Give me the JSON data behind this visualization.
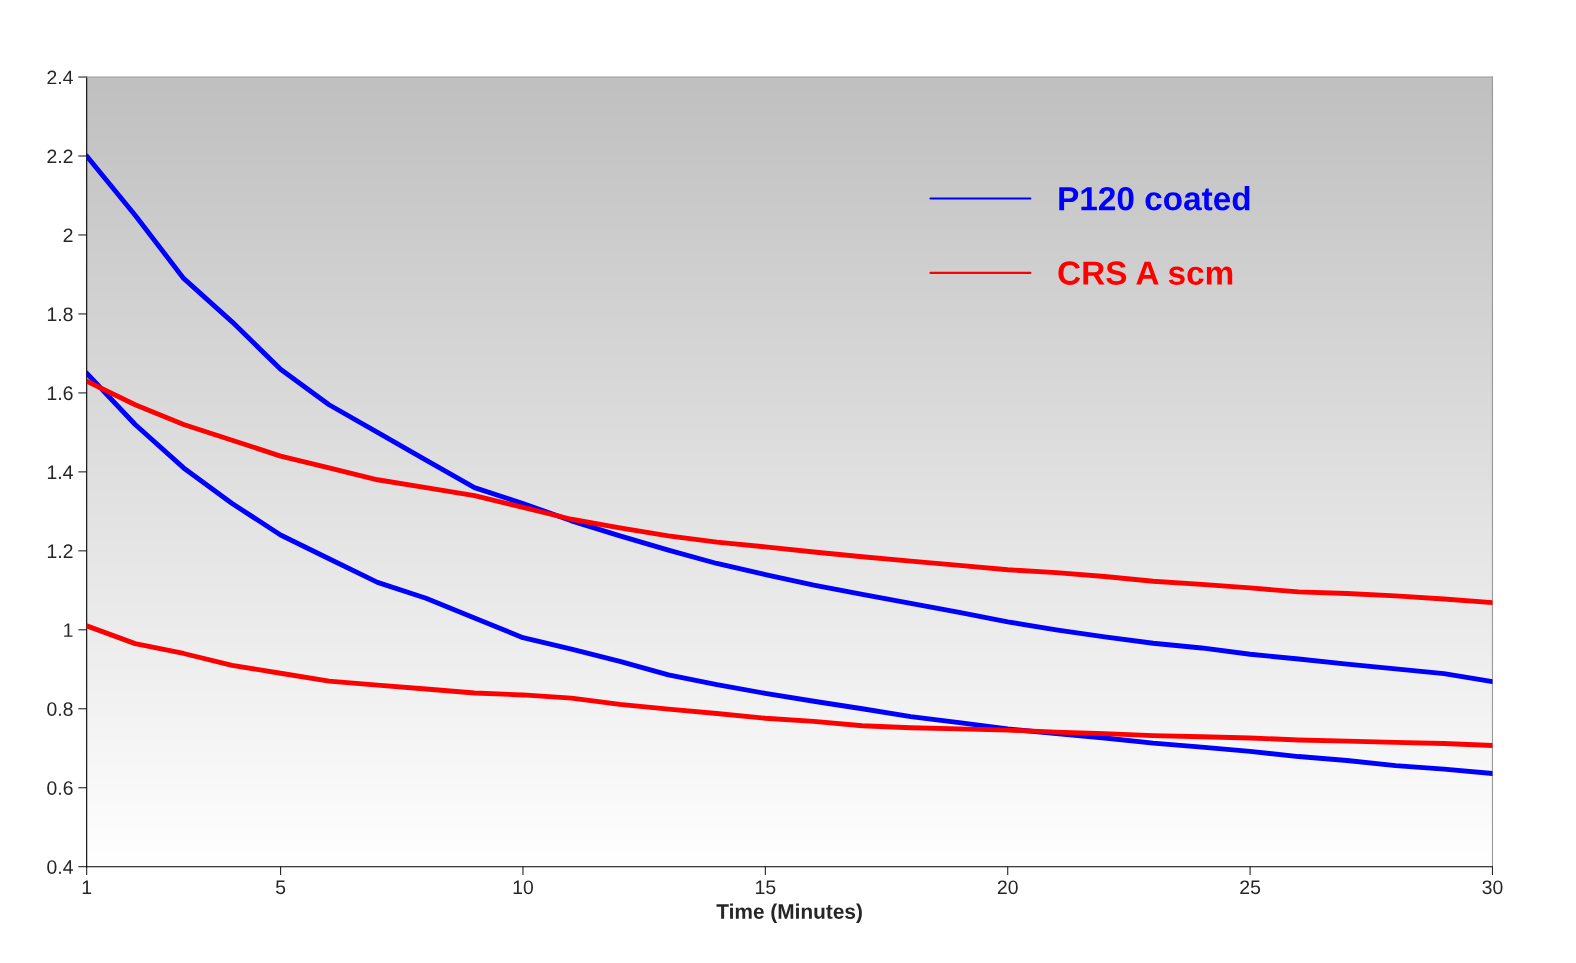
{
  "chart_data": {
    "type": "line",
    "xlabel": "Time (Minutes)",
    "x": [
      1,
      2,
      3,
      4,
      5,
      6,
      7,
      8,
      9,
      10,
      11,
      12,
      13,
      14,
      15,
      16,
      17,
      18,
      19,
      20,
      21,
      22,
      23,
      24,
      25,
      26,
      27,
      28,
      29,
      30
    ],
    "series": [
      {
        "name": "P120 coated",
        "color": "#0000ff",
        "values": [
          2.2,
          2.05,
          1.89,
          1.78,
          1.66,
          1.57,
          1.5,
          1.43,
          1.36,
          1.32,
          1.276,
          1.238,
          1.202,
          1.168,
          1.14,
          1.113,
          1.09,
          1.067,
          1.044,
          1.02,
          1.0,
          0.982,
          0.966,
          0.954,
          0.938,
          0.926,
          0.913,
          0.901,
          0.889,
          0.869
        ]
      },
      {
        "color": "#0000ff",
        "values": [
          1.65,
          1.52,
          1.41,
          1.32,
          1.24,
          1.18,
          1.12,
          1.08,
          1.03,
          0.98,
          0.951,
          0.92,
          0.886,
          0.861,
          0.839,
          0.819,
          0.8,
          0.78,
          0.765,
          0.749,
          0.737,
          0.726,
          0.713,
          0.703,
          0.692,
          0.679,
          0.669,
          0.656,
          0.647,
          0.636
        ]
      },
      {
        "name": "CRS A scm",
        "color": "#ff0000",
        "values": [
          1.63,
          1.57,
          1.52,
          1.48,
          1.44,
          1.41,
          1.38,
          1.36,
          1.34,
          1.31,
          1.28,
          1.258,
          1.238,
          1.222,
          1.21,
          1.197,
          1.185,
          1.174,
          1.163,
          1.152,
          1.145,
          1.135,
          1.123,
          1.115,
          1.106,
          1.096,
          1.092,
          1.086,
          1.078,
          1.069
        ]
      },
      {
        "color": "#ff0000",
        "values": [
          1.01,
          0.965,
          0.94,
          0.91,
          0.89,
          0.87,
          0.86,
          0.85,
          0.84,
          0.835,
          0.827,
          0.811,
          0.799,
          0.788,
          0.776,
          0.768,
          0.757,
          0.752,
          0.749,
          0.746,
          0.741,
          0.737,
          0.732,
          0.729,
          0.726,
          0.721,
          0.718,
          0.715,
          0.712,
          0.707
        ]
      }
    ],
    "xlim": [
      1,
      30
    ],
    "xticks": [
      1,
      5,
      10,
      15,
      20,
      25,
      30
    ],
    "ylim": [
      0.4,
      2.4
    ],
    "yticks": [
      0.4,
      0.6,
      0.8,
      1,
      1.2,
      1.4,
      1.6,
      1.8,
      2,
      2.2,
      2.4
    ],
    "grid": false,
    "legend": "top right",
    "line_style": "solid",
    "marker": "none"
  }
}
